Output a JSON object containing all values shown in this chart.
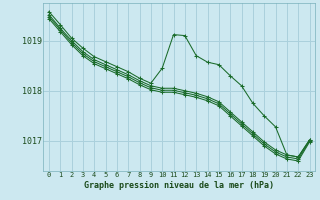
{
  "background_color": "#cce8f0",
  "grid_color": "#aad0dc",
  "line_color": "#1a6b2a",
  "title": "Graphe pression niveau de la mer (hPa)",
  "ylim": [
    1016.4,
    1019.75
  ],
  "yticks": [
    1017,
    1018,
    1019
  ],
  "xlim": [
    -0.5,
    23.5
  ],
  "xticks": [
    0,
    1,
    2,
    3,
    4,
    5,
    6,
    7,
    8,
    9,
    10,
    11,
    12,
    13,
    14,
    15,
    16,
    17,
    18,
    19,
    20,
    21,
    22,
    23
  ],
  "series": [
    [
      1019.58,
      1019.32,
      1019.05,
      1018.85,
      1018.68,
      1018.58,
      1018.48,
      1018.38,
      1018.25,
      1018.15,
      1018.45,
      1019.12,
      1019.1,
      1018.7,
      1018.57,
      1018.52,
      1018.3,
      1018.1,
      1017.75,
      1017.5,
      1017.28,
      1016.72,
      1016.68,
      1017.02
    ],
    [
      1019.52,
      1019.25,
      1019.0,
      1018.78,
      1018.62,
      1018.52,
      1018.42,
      1018.32,
      1018.2,
      1018.1,
      1018.05,
      1018.05,
      1018.0,
      1017.95,
      1017.88,
      1017.78,
      1017.58,
      1017.38,
      1017.18,
      1016.98,
      1016.82,
      1016.72,
      1016.68,
      1017.02
    ],
    [
      1019.48,
      1019.22,
      1018.96,
      1018.74,
      1018.58,
      1018.48,
      1018.38,
      1018.28,
      1018.16,
      1018.06,
      1018.01,
      1018.01,
      1017.96,
      1017.91,
      1017.84,
      1017.74,
      1017.54,
      1017.34,
      1017.14,
      1016.94,
      1016.78,
      1016.68,
      1016.64,
      1017.0
    ],
    [
      1019.44,
      1019.18,
      1018.92,
      1018.7,
      1018.54,
      1018.44,
      1018.34,
      1018.24,
      1018.12,
      1018.02,
      1017.97,
      1017.97,
      1017.92,
      1017.87,
      1017.8,
      1017.7,
      1017.5,
      1017.3,
      1017.1,
      1016.9,
      1016.74,
      1016.64,
      1016.6,
      1016.98
    ]
  ]
}
